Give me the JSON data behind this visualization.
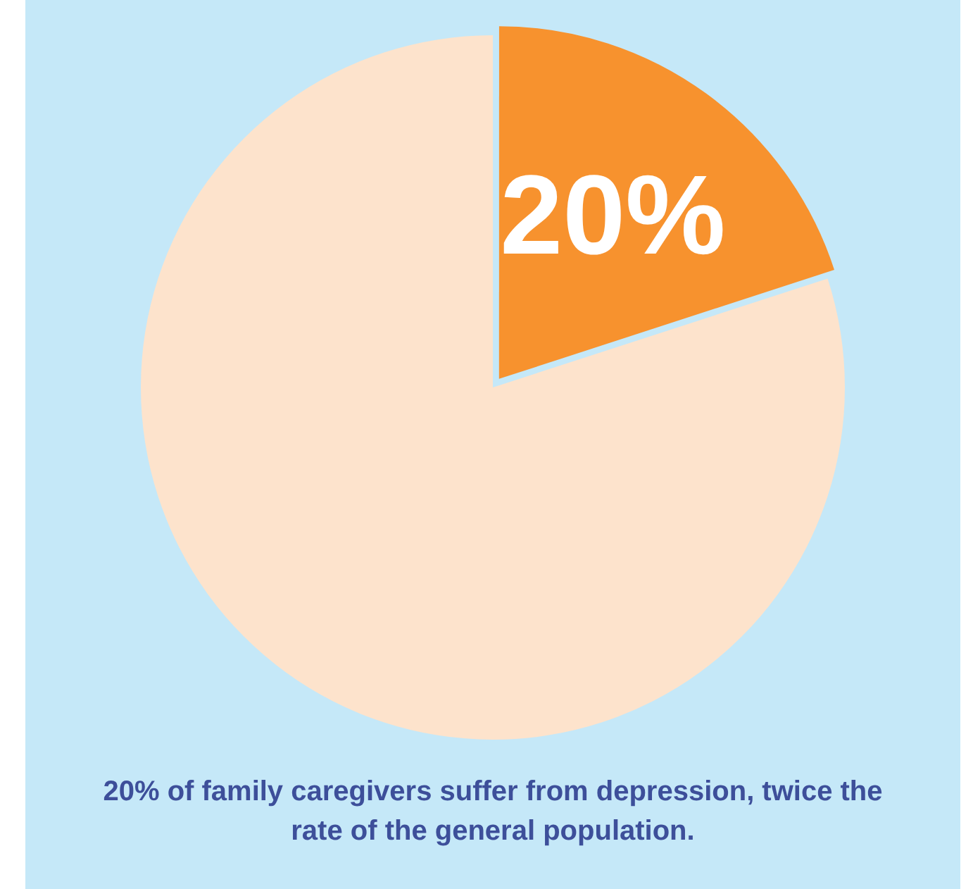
{
  "chart_data": {
    "type": "pie",
    "categories": [
      null,
      null
    ],
    "values": [
      20,
      80
    ],
    "colors": [
      "#f7922e",
      "#fde3cc"
    ],
    "value_labels": [
      "20%",
      null
    ],
    "legend": false,
    "annotations": [
      "20% of family caregivers suffer from depression, twice the rate of the general population."
    ]
  }
}
